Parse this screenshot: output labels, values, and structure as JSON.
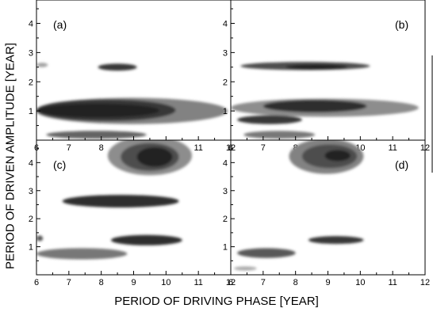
{
  "figure": {
    "xlabel": "PERIOD OF DRIVING PHASE [YEAR]",
    "ylabel": "PERIOD OF DRIVEN AMPLITUDE [YEAR]"
  },
  "chart_data": [
    {
      "type": "heatmap",
      "panel_label": "(a)",
      "xlim": [
        6,
        12
      ],
      "ylim": [
        0,
        4.8
      ],
      "xticks": [
        6,
        7,
        8,
        9,
        10,
        11,
        12
      ],
      "yticks": [
        1,
        2,
        3,
        4
      ],
      "regions": [
        {
          "x": [
            7.9,
            9.1
          ],
          "y": [
            2.38,
            2.62
          ],
          "level": 0.85
        },
        {
          "x": [
            6.0,
            6.35
          ],
          "y": [
            2.5,
            2.65
          ],
          "level": 0.35
        },
        {
          "x": [
            6.0,
            11.9
          ],
          "y": [
            0.55,
            1.45
          ],
          "level": 0.5
        },
        {
          "x": [
            6.0,
            10.3
          ],
          "y": [
            0.65,
            1.4
          ],
          "level": 0.85
        },
        {
          "x": [
            6.0,
            9.8
          ],
          "y": [
            0.78,
            1.25
          ],
          "level": 0.95
        },
        {
          "x": [
            6.3,
            9.4
          ],
          "y": [
            0.05,
            0.32
          ],
          "level": 0.65
        }
      ]
    },
    {
      "type": "heatmap",
      "panel_label": "(b)",
      "xlim": [
        6,
        12
      ],
      "ylim": [
        0,
        4.8
      ],
      "xticks": [
        6,
        7,
        8,
        9,
        10,
        11,
        12
      ],
      "yticks": [
        1,
        2,
        3,
        4
      ],
      "regions": [
        {
          "x": [
            6.3,
            10.3
          ],
          "y": [
            2.4,
            2.68
          ],
          "level": 0.75
        },
        {
          "x": [
            7.7,
            9.6
          ],
          "y": [
            2.42,
            2.6
          ],
          "level": 0.95
        },
        {
          "x": [
            6.0,
            11.8
          ],
          "y": [
            0.8,
            1.42
          ],
          "level": 0.45
        },
        {
          "x": [
            7.0,
            10.2
          ],
          "y": [
            0.95,
            1.38
          ],
          "level": 0.9
        },
        {
          "x": [
            6.2,
            8.2
          ],
          "y": [
            0.55,
            0.85
          ],
          "level": 0.85
        },
        {
          "x": [
            6.4,
            8.6
          ],
          "y": [
            0.05,
            0.32
          ],
          "level": 0.55
        }
      ]
    },
    {
      "type": "heatmap",
      "panel_label": "(c)",
      "xlim": [
        6,
        12
      ],
      "ylim": [
        0,
        4.8
      ],
      "xticks": [
        6,
        7,
        8,
        9,
        10,
        11,
        12
      ],
      "yticks": [
        1,
        2,
        3,
        4
      ],
      "regions": [
        {
          "x": [
            8.2,
            10.8
          ],
          "y": [
            3.55,
            4.95
          ],
          "level": 0.45
        },
        {
          "x": [
            8.6,
            10.4
          ],
          "y": [
            3.7,
            4.7
          ],
          "level": 0.75
        },
        {
          "x": [
            9.1,
            10.2
          ],
          "y": [
            3.85,
            4.55
          ],
          "level": 0.95
        },
        {
          "x": [
            6.8,
            10.4
          ],
          "y": [
            2.4,
            2.85
          ],
          "level": 0.9
        },
        {
          "x": [
            8.3,
            10.5
          ],
          "y": [
            1.05,
            1.42
          ],
          "level": 0.9
        },
        {
          "x": [
            6.0,
            8.8
          ],
          "y": [
            0.55,
            0.95
          ],
          "level": 0.55
        },
        {
          "x": [
            6.0,
            6.2
          ],
          "y": [
            1.2,
            1.4
          ],
          "level": 0.7
        }
      ]
    },
    {
      "type": "heatmap",
      "panel_label": "(d)",
      "xlim": [
        6,
        12
      ],
      "ylim": [
        0,
        4.8
      ],
      "xticks": [
        6,
        7,
        8,
        9,
        10,
        11,
        12
      ],
      "yticks": [
        1,
        2,
        3,
        4
      ],
      "regions": [
        {
          "x": [
            7.8,
            10.1
          ],
          "y": [
            3.6,
            4.85
          ],
          "level": 0.5
        },
        {
          "x": [
            8.2,
            9.9
          ],
          "y": [
            3.8,
            4.65
          ],
          "level": 0.75
        },
        {
          "x": [
            8.9,
            9.7
          ],
          "y": [
            4.05,
            4.45
          ],
          "level": 0.95
        },
        {
          "x": [
            8.4,
            10.1
          ],
          "y": [
            1.1,
            1.38
          ],
          "level": 0.85
        },
        {
          "x": [
            6.2,
            8.0
          ],
          "y": [
            0.6,
            0.95
          ],
          "level": 0.7
        },
        {
          "x": [
            6.1,
            6.8
          ],
          "y": [
            0.15,
            0.3
          ],
          "level": 0.3
        }
      ]
    }
  ]
}
